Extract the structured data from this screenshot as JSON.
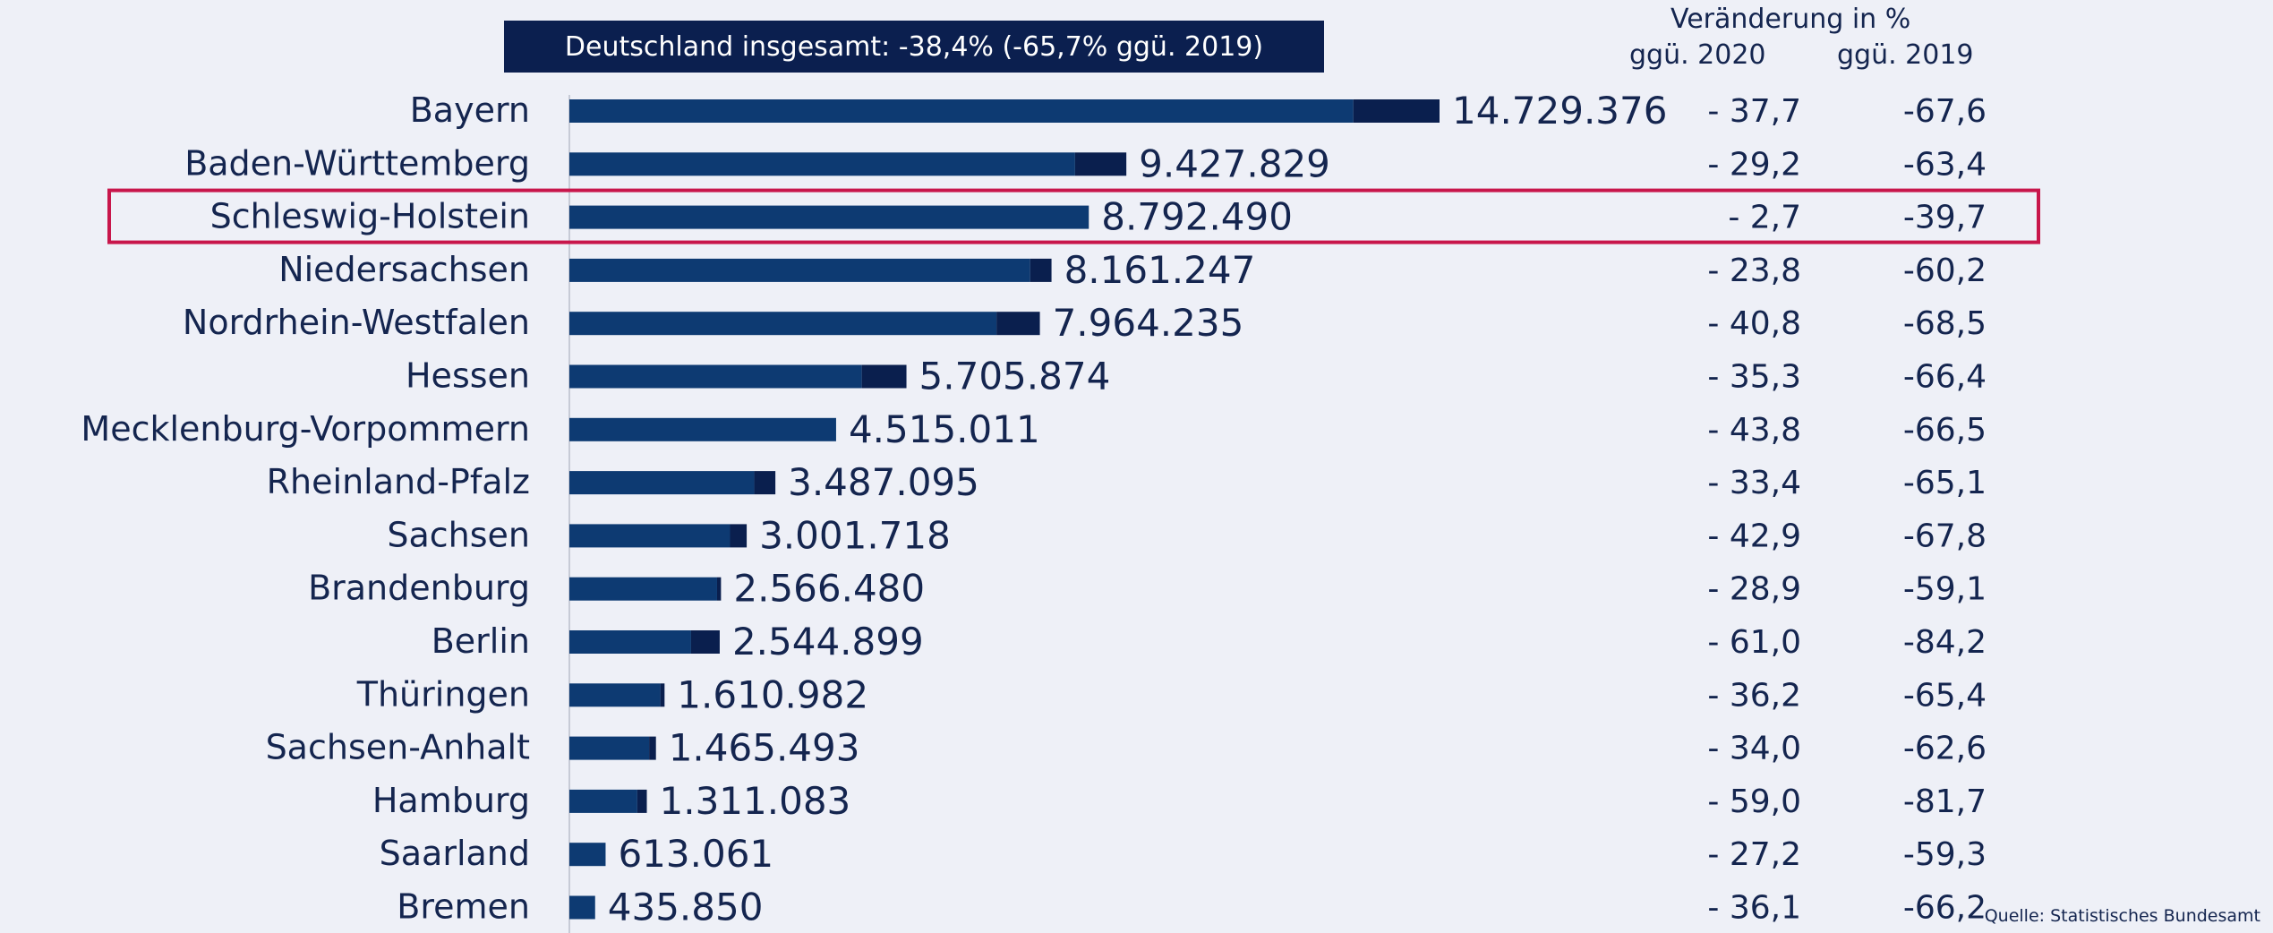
{
  "chart_data": {
    "type": "bar",
    "orientation": "horizontal",
    "stacked": true,
    "annotation": "Deutschland insgesamt: -38,4% (-65,7% ggü. 2019)",
    "columns_header": {
      "title": "Veränderung in %",
      "col1": "ggü. 2020",
      "col2": "ggü. 2019"
    },
    "categories": [
      "Bayern",
      "Baden-Württemberg",
      "Schleswig-Holstein",
      "Niedersachsen",
      "Nordrhein-Westfalen",
      "Hessen",
      "Mecklenburg-Vorpommern",
      "Rheinland-Pfalz",
      "Sachsen",
      "Brandenburg",
      "Berlin",
      "Thüringen",
      "Sachsen-Anhalt",
      "Hamburg",
      "Saarland",
      "Bremen"
    ],
    "value_labels": [
      "14.729.376",
      "9.427.829",
      "8.792.490",
      "8.161.247",
      "7.964.235",
      "5.705.874",
      "4.515.011",
      "3.487.095",
      "3.001.718",
      "2.566.480",
      "2.544.899",
      "1.610.982",
      "1.465.493",
      "1.311.083",
      "613.061",
      "435.850"
    ],
    "totals": [
      14729376,
      9427829,
      8792490,
      8161247,
      7964235,
      5705874,
      4515011,
      3487095,
      3001718,
      2566480,
      2544899,
      1610982,
      1465493,
      1311083,
      613061,
      435850
    ],
    "series": [
      {
        "values": [
          13270000,
          8560000,
          8790000,
          7800000,
          7230000,
          4950000,
          4515011,
          3130000,
          2720000,
          2500000,
          2060000,
          1540000,
          1350000,
          1150000,
          613061,
          435850
        ]
      },
      {
        "values": [
          1459376,
          867829,
          2490,
          361247,
          734235,
          755874,
          0,
          357095,
          281718,
          66480,
          484899,
          70982,
          115493,
          161083,
          0,
          0
        ]
      }
    ],
    "change_vs_2020": [
      "-  37,7",
      "-  29,2",
      "-  2,7",
      "-  23,8",
      "-  40,8",
      "-  35,3",
      "-  43,8",
      "-  33,4",
      "-  42,9",
      "-  28,9",
      "-  61,0",
      "-  36,2",
      "-  34,0",
      "-  59,0",
      "-  27,2",
      "-  36,1"
    ],
    "change_vs_2019": [
      "-67,6",
      "-63,4",
      "-39,7",
      "-60,2",
      "-68,5",
      "-66,4",
      "-66,5",
      "-65,1",
      "-67,8",
      "-59,1",
      "-84,2",
      "-65,4",
      "-62,6",
      "-81,7",
      "-59,3",
      "-66,2"
    ],
    "highlight_category": "Schleswig-Holstein",
    "source": "Quelle: Statistisches  Bundesamt",
    "colors": {
      "series_main": "#0d3a72",
      "series_dark": "#0a1f4e",
      "highlight": "#c8164b",
      "text": "#14254f",
      "background": "#eef0f7",
      "banner": "#0b1f4f"
    }
  }
}
